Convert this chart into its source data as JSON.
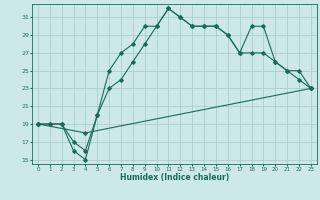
{
  "xlabel": "Humidex (Indice chaleur)",
  "ylabel": "",
  "bg_color": "#cce8e8",
  "grid_color": "#aacece",
  "line_color": "#1a6b5a",
  "xlim": [
    -0.5,
    23.5
  ],
  "ylim": [
    14.5,
    32.5
  ],
  "xticks": [
    0,
    1,
    2,
    3,
    4,
    5,
    6,
    7,
    8,
    9,
    10,
    11,
    12,
    13,
    14,
    15,
    16,
    17,
    18,
    19,
    20,
    21,
    22,
    23
  ],
  "yticks": [
    15,
    17,
    19,
    21,
    23,
    25,
    27,
    29,
    31
  ],
  "line1_x": [
    0,
    1,
    2,
    3,
    4,
    5,
    6,
    7,
    8,
    9,
    10,
    11,
    12,
    13,
    14,
    15,
    16,
    17,
    18,
    19,
    20,
    21,
    22,
    23
  ],
  "line1_y": [
    19,
    19,
    19,
    17,
    16,
    20,
    25,
    27,
    28,
    30,
    30,
    32,
    31,
    30,
    30,
    30,
    29,
    27,
    30,
    30,
    26,
    25,
    24,
    23
  ],
  "line2_x": [
    0,
    1,
    2,
    3,
    4,
    5,
    6,
    7,
    8,
    9,
    10,
    11,
    12,
    13,
    14,
    15,
    16,
    17,
    18,
    19,
    20,
    21,
    22,
    23
  ],
  "line2_y": [
    19,
    19,
    19,
    16,
    15,
    20,
    23,
    24,
    26,
    28,
    30,
    32,
    31,
    30,
    30,
    30,
    29,
    27,
    27,
    27,
    26,
    25,
    25,
    23
  ],
  "line3_x": [
    0,
    4,
    23
  ],
  "line3_y": [
    19,
    18,
    23
  ]
}
